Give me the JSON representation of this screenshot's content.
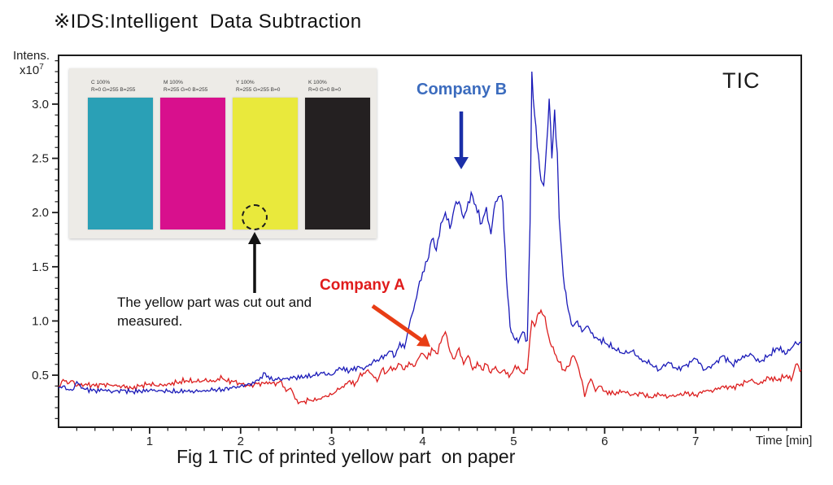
{
  "title": "※IDS:Intelligent  Data Subtraction",
  "figure_caption": "Fig 1 TIC of printed yellow part  on paper",
  "chart": {
    "corner_label": "TIC",
    "y_axis_label": "Intens.",
    "y_axis_multiplier_base": "x10",
    "y_axis_multiplier_exp": "7",
    "x_axis_label": "Time [min]",
    "frame_color": "#1c1c1c"
  },
  "annotations": {
    "company_b": {
      "label": "Company B",
      "text_color": "#3c6cbe",
      "arrow_color": "#1b2fa8"
    },
    "company_a": {
      "label": "Company A",
      "text_color": "#e01b1b",
      "arrow_color": "#e83d15"
    },
    "cutout_note": "The yellow part was cut out and measured.",
    "cutout_arrow_color": "#111111",
    "cutout_circle_color": "#1c1c1c"
  },
  "inset_photo": {
    "background_color": "#edebe7",
    "swatches": [
      {
        "name": "C 100%",
        "rgb": "R=0 G=255 B=255",
        "color": "#2aa0b6"
      },
      {
        "name": "M 100%",
        "rgb": "R=255 G=0 B=255",
        "color": "#d8108d"
      },
      {
        "name": "Y 100%",
        "rgb": "R=255 G=255 B=0",
        "color": "#e9e93c"
      },
      {
        "name": "K 100%",
        "rgb": "R=0 G=0 B=0",
        "color": "#242021"
      }
    ]
  },
  "chart_data": {
    "type": "line",
    "title": "TIC",
    "xlabel": "Time [min]",
    "ylabel": "Intens. x10^7",
    "xlim": [
      0,
      8.16
    ],
    "ylim": [
      0.02,
      3.45
    ],
    "x_major_ticks": [
      1,
      2,
      3,
      4,
      5,
      6,
      7
    ],
    "x_minor_step": 0.2,
    "y_major_ticks": [
      0.5,
      1.0,
      1.5,
      2.0,
      2.5,
      3.0
    ],
    "y_minor_step": 0.1,
    "grid": false,
    "legend_position": "none",
    "series": [
      {
        "name": "Company A",
        "color": "#dc1e1e",
        "x": [
          0,
          0.05,
          0.1,
          0.15,
          0.2,
          0.3,
          0.4,
          0.5,
          0.6,
          0.7,
          0.8,
          0.9,
          1.0,
          1.1,
          1.2,
          1.3,
          1.4,
          1.5,
          1.6,
          1.7,
          1.8,
          1.85,
          1.9,
          2.0,
          2.1,
          2.2,
          2.3,
          2.4,
          2.45,
          2.5,
          2.55,
          2.6,
          2.65,
          2.7,
          2.75,
          2.8,
          2.85,
          2.9,
          3.0,
          3.05,
          3.1,
          3.15,
          3.2,
          3.25,
          3.3,
          3.35,
          3.4,
          3.45,
          3.5,
          3.55,
          3.6,
          3.65,
          3.7,
          3.75,
          3.8,
          3.85,
          3.9,
          3.95,
          4.0,
          4.05,
          4.1,
          4.15,
          4.2,
          4.25,
          4.3,
          4.35,
          4.4,
          4.45,
          4.5,
          4.55,
          4.6,
          4.65,
          4.7,
          4.75,
          4.8,
          4.85,
          4.9,
          4.95,
          5.0,
          5.05,
          5.1,
          5.15,
          5.18,
          5.2,
          5.23,
          5.26,
          5.3,
          5.33,
          5.36,
          5.4,
          5.45,
          5.5,
          5.55,
          5.6,
          5.65,
          5.7,
          5.75,
          5.78,
          5.82,
          5.86,
          5.9,
          5.95,
          6.0,
          6.1,
          6.2,
          6.3,
          6.4,
          6.5,
          6.6,
          6.7,
          6.8,
          6.9,
          7.0,
          7.1,
          7.2,
          7.3,
          7.4,
          7.5,
          7.6,
          7.7,
          7.8,
          7.9,
          8.0,
          8.05,
          8.1,
          8.16
        ],
        "y": [
          0.4,
          0.46,
          0.42,
          0.45,
          0.4,
          0.42,
          0.4,
          0.42,
          0.4,
          0.4,
          0.38,
          0.4,
          0.42,
          0.4,
          0.42,
          0.43,
          0.45,
          0.44,
          0.45,
          0.45,
          0.47,
          0.44,
          0.45,
          0.42,
          0.4,
          0.43,
          0.42,
          0.43,
          0.44,
          0.35,
          0.38,
          0.28,
          0.25,
          0.26,
          0.27,
          0.26,
          0.28,
          0.3,
          0.32,
          0.35,
          0.38,
          0.42,
          0.45,
          0.4,
          0.48,
          0.52,
          0.55,
          0.5,
          0.44,
          0.55,
          0.52,
          0.58,
          0.55,
          0.6,
          0.55,
          0.62,
          0.58,
          0.65,
          0.7,
          0.65,
          0.75,
          0.7,
          0.8,
          0.9,
          0.72,
          0.65,
          0.75,
          0.6,
          0.68,
          0.55,
          0.62,
          0.55,
          0.6,
          0.52,
          0.58,
          0.52,
          0.55,
          0.48,
          0.55,
          0.58,
          0.52,
          0.55,
          0.85,
          1.0,
          0.95,
          1.05,
          1.1,
          1.05,
          0.95,
          0.8,
          0.7,
          0.62,
          0.55,
          0.58,
          0.68,
          0.6,
          0.45,
          0.3,
          0.42,
          0.45,
          0.35,
          0.4,
          0.35,
          0.33,
          0.35,
          0.32,
          0.33,
          0.3,
          0.32,
          0.3,
          0.32,
          0.33,
          0.32,
          0.35,
          0.36,
          0.4,
          0.38,
          0.42,
          0.45,
          0.42,
          0.48,
          0.45,
          0.5,
          0.45,
          0.6,
          0.55
        ]
      },
      {
        "name": "Company B",
        "color": "#1a1ab8",
        "x": [
          0,
          0.05,
          0.1,
          0.15,
          0.2,
          0.25,
          0.3,
          0.4,
          0.5,
          0.6,
          0.7,
          0.8,
          0.9,
          1.0,
          1.1,
          1.2,
          1.3,
          1.4,
          1.5,
          1.6,
          1.7,
          1.8,
          1.9,
          2.0,
          2.1,
          2.2,
          2.27,
          2.32,
          2.4,
          2.5,
          2.6,
          2.7,
          2.8,
          2.9,
          3.0,
          3.05,
          3.1,
          3.2,
          3.3,
          3.35,
          3.45,
          3.5,
          3.6,
          3.65,
          3.7,
          3.75,
          3.8,
          3.85,
          3.9,
          3.95,
          4.0,
          4.05,
          4.1,
          4.15,
          4.2,
          4.25,
          4.3,
          4.35,
          4.4,
          4.45,
          4.5,
          4.55,
          4.6,
          4.65,
          4.7,
          4.75,
          4.8,
          4.85,
          4.88,
          4.92,
          4.96,
          5.0,
          5.05,
          5.1,
          5.15,
          5.18,
          5.2,
          5.23,
          5.26,
          5.3,
          5.33,
          5.36,
          5.39,
          5.42,
          5.45,
          5.48,
          5.5,
          5.53,
          5.56,
          5.6,
          5.65,
          5.7,
          5.75,
          5.8,
          5.9,
          6.0,
          6.1,
          6.2,
          6.3,
          6.4,
          6.5,
          6.6,
          6.7,
          6.8,
          6.9,
          7.0,
          7.1,
          7.2,
          7.3,
          7.4,
          7.5,
          7.6,
          7.7,
          7.8,
          7.9,
          8.0,
          8.08,
          8.16
        ],
        "y": [
          0.38,
          0.4,
          0.37,
          0.36,
          0.44,
          0.38,
          0.37,
          0.36,
          0.36,
          0.35,
          0.36,
          0.35,
          0.35,
          0.36,
          0.36,
          0.35,
          0.35,
          0.35,
          0.35,
          0.36,
          0.36,
          0.37,
          0.38,
          0.4,
          0.42,
          0.45,
          0.52,
          0.46,
          0.46,
          0.47,
          0.48,
          0.48,
          0.5,
          0.52,
          0.5,
          0.55,
          0.56,
          0.54,
          0.58,
          0.55,
          0.62,
          0.64,
          0.68,
          0.72,
          0.68,
          0.8,
          0.75,
          0.95,
          1.1,
          1.3,
          1.45,
          1.55,
          1.75,
          1.65,
          1.9,
          2.0,
          1.85,
          2.05,
          2.1,
          1.95,
          2.1,
          2.15,
          2.0,
          1.9,
          2.05,
          1.8,
          2.1,
          2.15,
          2.1,
          1.4,
          0.95,
          0.85,
          0.8,
          0.9,
          0.82,
          1.9,
          3.3,
          2.9,
          2.6,
          2.3,
          2.25,
          2.6,
          3.05,
          2.5,
          2.95,
          2.55,
          1.95,
          1.6,
          1.3,
          1.1,
          0.95,
          1.0,
          0.9,
          0.95,
          0.85,
          0.8,
          0.75,
          0.7,
          0.72,
          0.65,
          0.6,
          0.55,
          0.62,
          0.55,
          0.6,
          0.65,
          0.55,
          0.6,
          0.68,
          0.6,
          0.65,
          0.7,
          0.62,
          0.68,
          0.75,
          0.7,
          0.78,
          0.8
        ]
      }
    ]
  }
}
